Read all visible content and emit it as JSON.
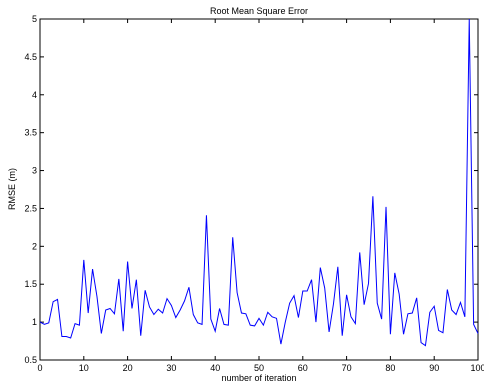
{
  "chart_data": {
    "type": "line",
    "title": "Root Mean Square Error",
    "xlabel": "number of iteration",
    "ylabel": "RMSE (m)",
    "xlim": [
      0,
      100
    ],
    "ylim": [
      0.5,
      5
    ],
    "xticks": [
      0,
      10,
      20,
      30,
      40,
      50,
      60,
      70,
      80,
      90,
      100
    ],
    "yticks": [
      0.5,
      1,
      1.5,
      2,
      2.5,
      3,
      3.5,
      4,
      4.5,
      5
    ],
    "xtick_labels": [
      "0",
      "10",
      "20",
      "30",
      "40",
      "50",
      "60",
      "70",
      "80",
      "90",
      "100"
    ],
    "ytick_labels": [
      "0.5",
      "1",
      "1.5",
      "2",
      "2.5",
      "3",
      "3.5",
      "4",
      "4.5",
      "5"
    ],
    "grid": false,
    "series": [
      {
        "color": "#0000ff",
        "x": [
          0,
          1,
          2,
          3,
          4,
          5,
          6,
          7,
          8,
          9,
          10,
          11,
          12,
          13,
          14,
          15,
          16,
          17,
          18,
          19,
          20,
          21,
          22,
          23,
          24,
          25,
          26,
          27,
          28,
          29,
          30,
          31,
          32,
          33,
          34,
          35,
          36,
          37,
          38,
          39,
          40,
          41,
          42,
          43,
          44,
          45,
          46,
          47,
          48,
          49,
          50,
          51,
          52,
          53,
          54,
          55,
          56,
          57,
          58,
          59,
          60,
          61,
          62,
          63,
          64,
          65,
          66,
          67,
          68,
          69,
          70,
          71,
          72,
          73,
          74,
          75,
          76,
          77,
          78,
          79,
          80,
          81,
          82,
          83,
          84,
          85,
          86,
          87,
          88,
          89,
          90,
          91,
          92,
          93,
          94,
          95,
          96,
          97,
          98,
          99,
          100
        ],
        "y": [
          1.0,
          0.97,
          0.99,
          1.27,
          1.3,
          0.81,
          0.81,
          0.79,
          0.98,
          0.96,
          1.82,
          1.12,
          1.7,
          1.34,
          0.85,
          1.16,
          1.18,
          1.11,
          1.57,
          0.88,
          1.8,
          1.18,
          1.56,
          0.82,
          1.42,
          1.2,
          1.1,
          1.17,
          1.12,
          1.31,
          1.22,
          1.06,
          1.16,
          1.28,
          1.46,
          1.1,
          0.99,
          0.97,
          2.41,
          1.04,
          0.88,
          1.18,
          0.97,
          0.96,
          2.12,
          1.39,
          1.12,
          1.11,
          0.96,
          0.95,
          1.05,
          0.96,
          1.13,
          1.07,
          1.05,
          0.71,
          1.0,
          1.25,
          1.35,
          1.06,
          1.41,
          1.41,
          1.56,
          1.0,
          1.72,
          1.45,
          0.87,
          1.24,
          1.73,
          0.82,
          1.36,
          1.07,
          0.98,
          1.92,
          1.23,
          1.51,
          2.66,
          1.25,
          1.04,
          2.52,
          0.84,
          1.65,
          1.37,
          0.84,
          1.11,
          1.12,
          1.32,
          0.73,
          0.69,
          1.13,
          1.21,
          0.89,
          0.86,
          1.43,
          1.16,
          1.1,
          1.26,
          1.07,
          5.0,
          0.97,
          0.85
        ]
      }
    ]
  }
}
